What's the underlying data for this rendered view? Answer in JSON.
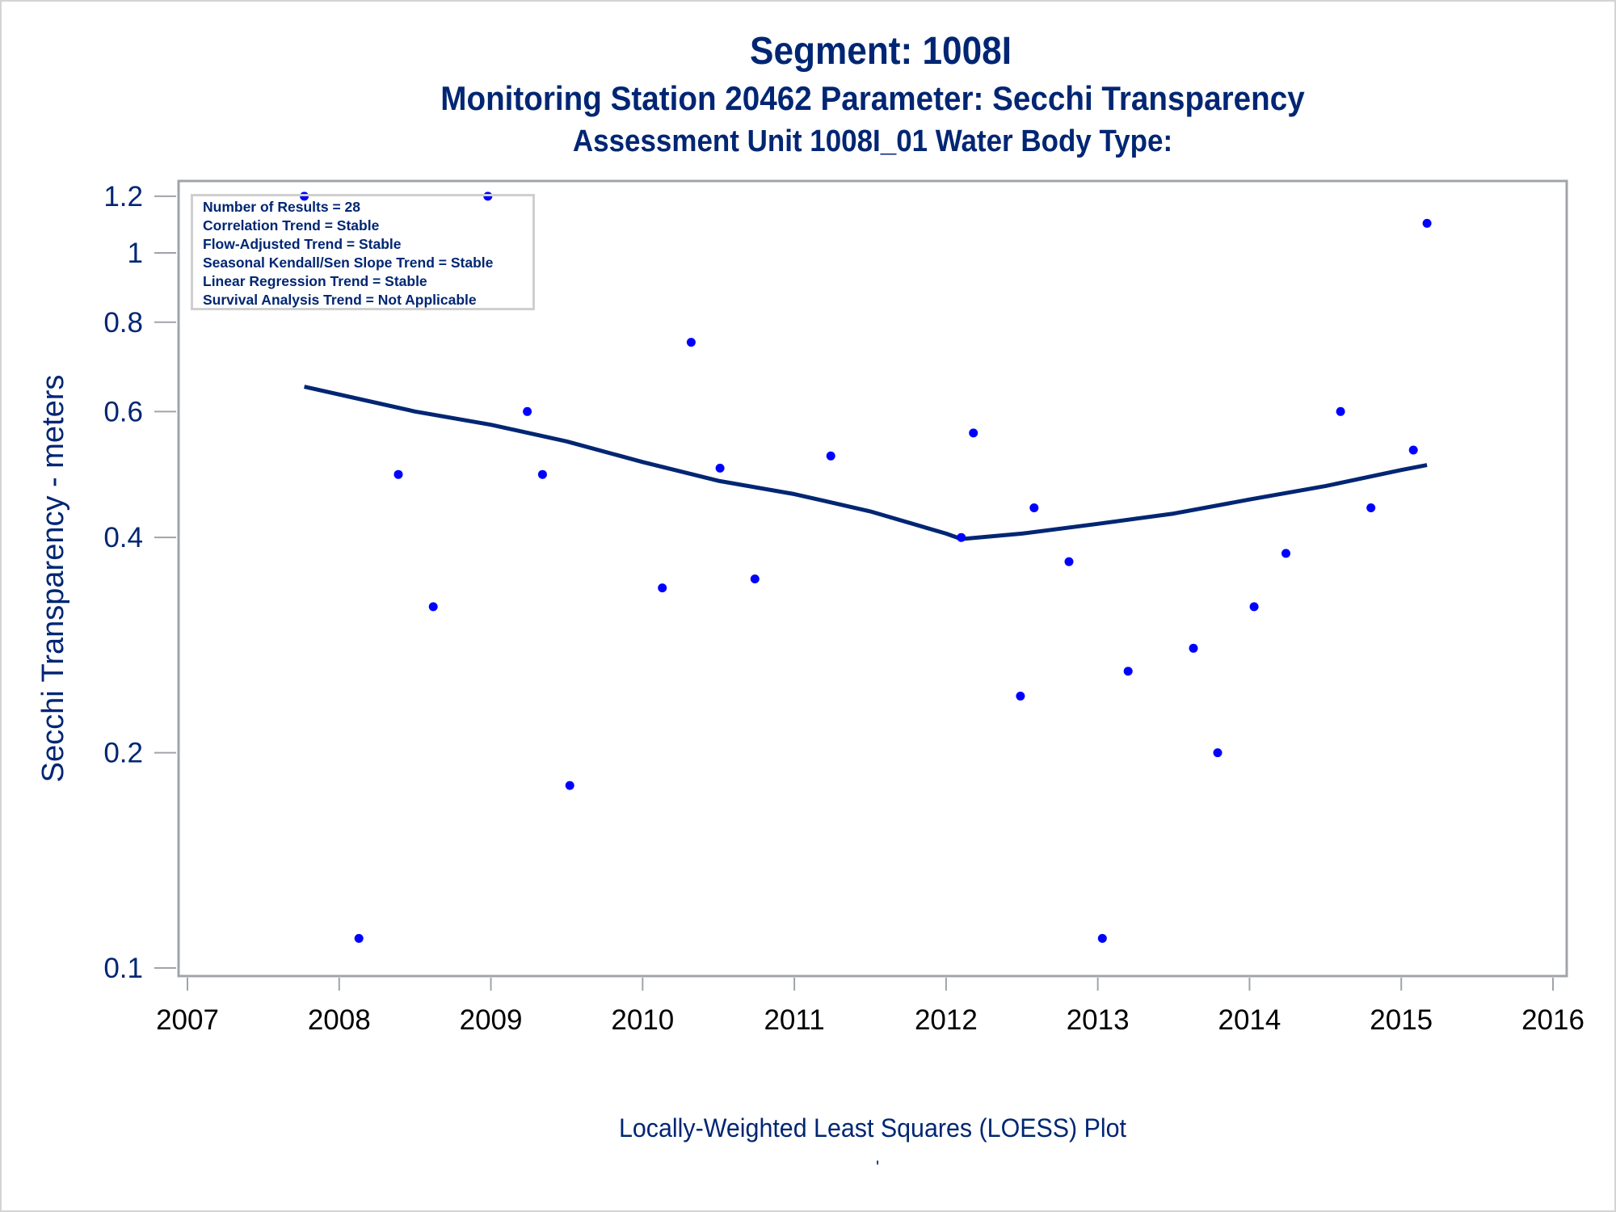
{
  "titles": {
    "line1": "Segment: 1008I",
    "line2": "Monitoring Station 20462 Parameter: Secchi Transparency",
    "line3": "Assessment Unit 1008I_01   Water Body Type:"
  },
  "stats_box": [
    "Number of Results = 28",
    "Correlation Trend = Stable",
    "Flow-Adjusted Trend = Stable",
    "Seasonal Kendall/Sen Slope Trend = Stable",
    "Linear Regression Trend = Stable",
    "Survival Analysis Trend = Not Applicable"
  ],
  "caption": "Locally-Weighted Least Squares (LOESS) Plot",
  "caption_mark": "'",
  "colors": {
    "text": "#002673",
    "points": "#0000ff",
    "loess_line": "#002673",
    "frame": "#a0a4a8"
  },
  "chart_data": {
    "type": "scatter",
    "title": "Segment: 1008I",
    "subtitle": "Monitoring Station 20462 Parameter: Secchi Transparency / Assessment Unit 1008I_01 Water Body Type:",
    "xlabel": "",
    "ylabel": "Secchi Transparency - meters",
    "x_scale": "linear",
    "y_scale": "log",
    "xlim": [
      2007,
      2016
    ],
    "ylim": [
      0.1,
      1.2
    ],
    "x_ticks": [
      "2007",
      "2008",
      "2009",
      "2010",
      "2011",
      "2012",
      "2013",
      "2014",
      "2015",
      "2016"
    ],
    "y_ticks": [
      "0.1",
      "0.2",
      "0.4",
      "0.6",
      "0.8",
      "1",
      "1.2"
    ],
    "y_tick_values": [
      0.1,
      0.2,
      0.4,
      0.6,
      0.8,
      1.0,
      1.2
    ],
    "grid": false,
    "series": [
      {
        "name": "Observations",
        "kind": "scatter",
        "points": [
          {
            "x": 2007.77,
            "y": 1.2
          },
          {
            "x": 2008.13,
            "y": 0.11
          },
          {
            "x": 2008.39,
            "y": 0.49
          },
          {
            "x": 2008.62,
            "y": 0.32
          },
          {
            "x": 2008.98,
            "y": 1.2
          },
          {
            "x": 2009.24,
            "y": 0.6
          },
          {
            "x": 2009.34,
            "y": 0.49
          },
          {
            "x": 2009.52,
            "y": 0.18
          },
          {
            "x": 2010.13,
            "y": 0.34
          },
          {
            "x": 2010.32,
            "y": 0.75
          },
          {
            "x": 2010.51,
            "y": 0.5
          },
          {
            "x": 2010.74,
            "y": 0.35
          },
          {
            "x": 2011.24,
            "y": 0.52
          },
          {
            "x": 2012.1,
            "y": 0.4
          },
          {
            "x": 2012.18,
            "y": 0.56
          },
          {
            "x": 2012.49,
            "y": 0.24
          },
          {
            "x": 2012.58,
            "y": 0.44
          },
          {
            "x": 2012.81,
            "y": 0.37
          },
          {
            "x": 2013.03,
            "y": 0.11
          },
          {
            "x": 2013.2,
            "y": 0.26
          },
          {
            "x": 2013.63,
            "y": 0.28
          },
          {
            "x": 2013.79,
            "y": 0.2
          },
          {
            "x": 2014.03,
            "y": 0.32
          },
          {
            "x": 2014.24,
            "y": 0.38
          },
          {
            "x": 2014.6,
            "y": 0.6
          },
          {
            "x": 2014.8,
            "y": 0.44
          },
          {
            "x": 2015.08,
            "y": 0.53
          },
          {
            "x": 2015.17,
            "y": 1.1
          }
        ]
      },
      {
        "name": "LOESS fit",
        "kind": "line",
        "points": [
          {
            "x": 2007.77,
            "y": 0.65
          },
          {
            "x": 2008.5,
            "y": 0.6
          },
          {
            "x": 2009.0,
            "y": 0.575
          },
          {
            "x": 2009.5,
            "y": 0.545
          },
          {
            "x": 2010.0,
            "y": 0.51
          },
          {
            "x": 2010.5,
            "y": 0.48
          },
          {
            "x": 2011.0,
            "y": 0.46
          },
          {
            "x": 2011.5,
            "y": 0.435
          },
          {
            "x": 2012.0,
            "y": 0.405
          },
          {
            "x": 2012.1,
            "y": 0.398
          },
          {
            "x": 2012.5,
            "y": 0.405
          },
          {
            "x": 2013.0,
            "y": 0.418
          },
          {
            "x": 2013.5,
            "y": 0.432
          },
          {
            "x": 2014.0,
            "y": 0.452
          },
          {
            "x": 2014.5,
            "y": 0.472
          },
          {
            "x": 2015.0,
            "y": 0.497
          },
          {
            "x": 2015.17,
            "y": 0.505
          }
        ]
      }
    ],
    "annotations": [
      "Number of Results = 28",
      "Correlation Trend = Stable",
      "Flow-Adjusted Trend = Stable",
      "Seasonal Kendall/Sen Slope Trend = Stable",
      "Linear Regression Trend = Stable",
      "Survival Analysis Trend = Not Applicable"
    ],
    "footnote": "Locally-Weighted Least Squares (LOESS) Plot"
  }
}
